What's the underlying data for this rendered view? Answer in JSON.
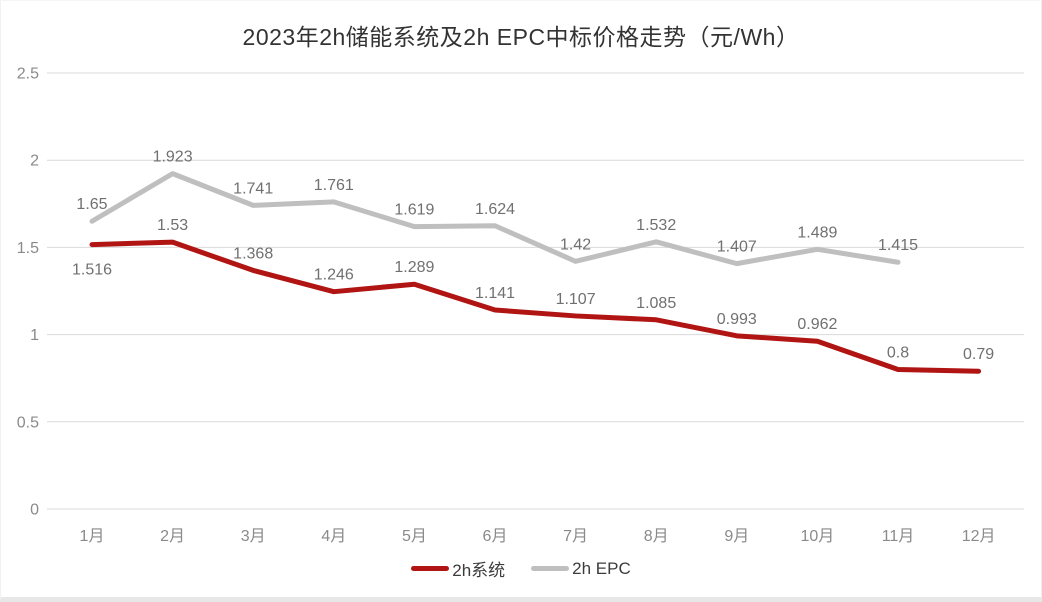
{
  "title": "2023年2h储能系统及2h EPC中标价格走势（元/Wh）",
  "chart_data": {
    "type": "line",
    "title": "2023年2h储能系统及2h EPC中标价格走势（元/Wh）",
    "categories": [
      "1月",
      "2月",
      "3月",
      "4月",
      "5月",
      "6月",
      "7月",
      "8月",
      "9月",
      "10月",
      "11月",
      "12月"
    ],
    "series": [
      {
        "id": "system",
        "name": "2h系统",
        "color": "#b01513",
        "values": [
          1.516,
          1.53,
          1.368,
          1.246,
          1.289,
          1.141,
          1.107,
          1.085,
          0.993,
          0.962,
          0.8,
          0.79
        ]
      },
      {
        "id": "epc",
        "name": "2h EPC",
        "color": "#bfbfbf",
        "values": [
          1.65,
          1.923,
          1.741,
          1.761,
          1.619,
          1.624,
          1.42,
          1.532,
          1.407,
          1.489,
          1.415,
          null
        ]
      }
    ],
    "xlabel": "",
    "ylabel": "",
    "ylim": [
      0,
      2.5
    ],
    "yticks": [
      0,
      0.5,
      1,
      1.5,
      2,
      2.5
    ],
    "grid": true,
    "legend_position": "bottom",
    "colors": {
      "gridline": "#d9d9d9",
      "axis_label": "#8a8a8a",
      "data_label": "#707070"
    }
  }
}
